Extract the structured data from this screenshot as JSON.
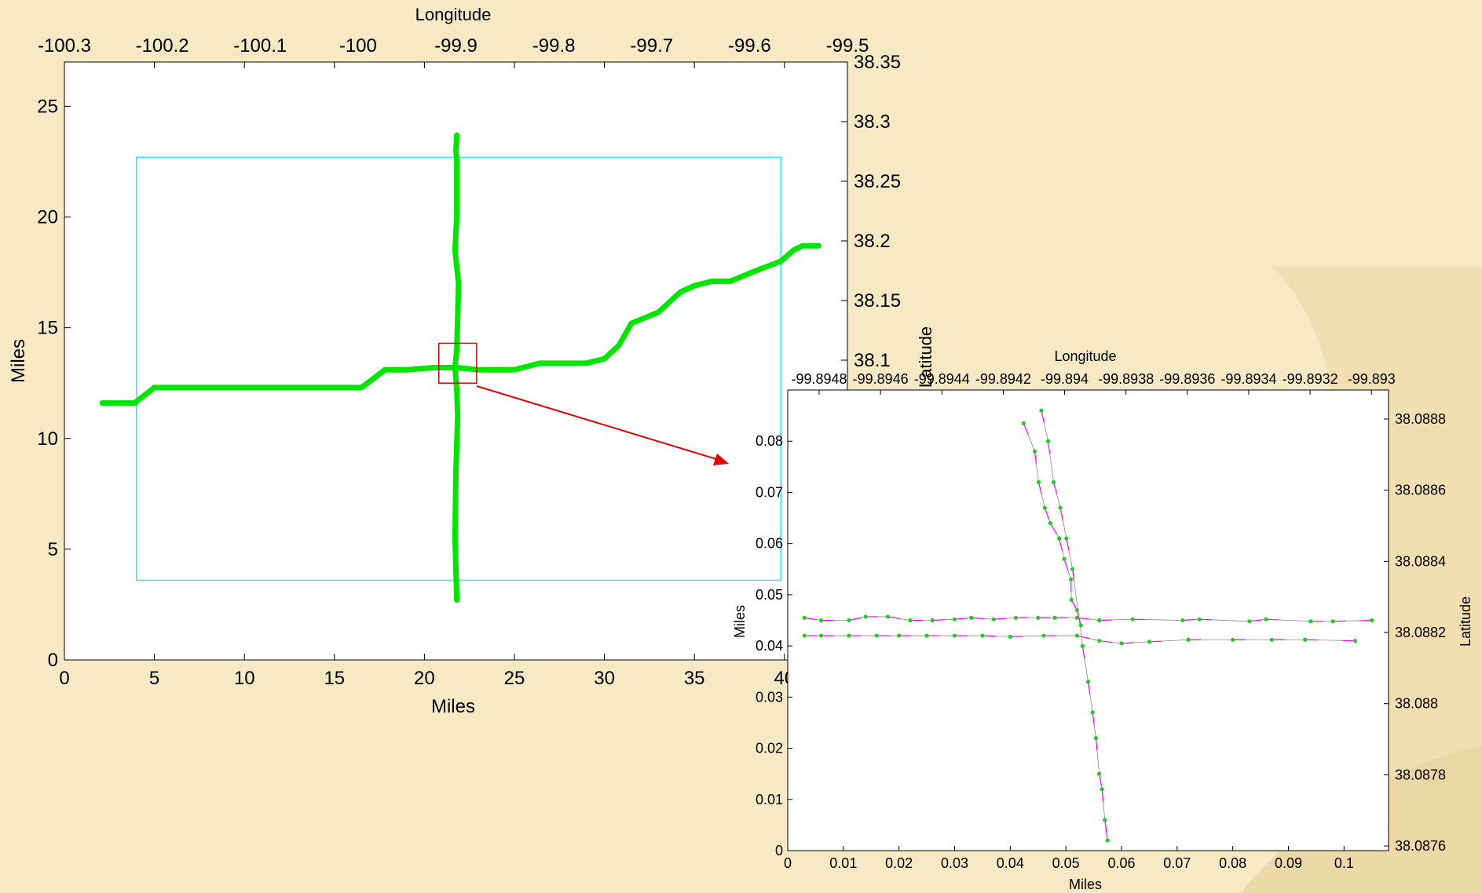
{
  "colors": {
    "background": "#f7e9c4",
    "plot_bg": "#ffffff",
    "road": "#00e600",
    "boundary": "#33e5e5",
    "zoom_box": "#e00000",
    "arrow": "#e00000",
    "vector": "#ff00ff",
    "point": "#22cc22"
  },
  "chart_data": [
    {
      "type": "line",
      "xlabel": "Miles",
      "ylabel": "Miles",
      "top_xlabel": "Longitude",
      "right_ylabel": "Latitude",
      "xlim": [
        0,
        43.5
      ],
      "ylim": [
        0,
        27
      ],
      "x_ticks": [
        "0",
        "5",
        "10",
        "15",
        "20",
        "25",
        "30",
        "35",
        "40"
      ],
      "y_ticks": [
        "0",
        "5",
        "10",
        "15",
        "20",
        "25"
      ],
      "top_ticks": [
        "-100.3",
        "-100.2",
        "-100.1",
        "-100",
        "-99.9",
        "-99.8",
        "-99.7",
        "-99.6",
        "-99.5"
      ],
      "right_ticks": [
        "38.35",
        "38.3",
        "38.25",
        "38.2",
        "38.15",
        "38.1"
      ],
      "grid": false,
      "series": [
        {
          "x": [
            2.1,
            3.9,
            5.0,
            7.0,
            10.0,
            14.0,
            16.5,
            17.0,
            17.8,
            19.0,
            20.5,
            21.8,
            23.0,
            25.0,
            26.4,
            27.0,
            29.0,
            30.0,
            30.8,
            31.5,
            32.4,
            33.0,
            34.2,
            35.0,
            36.0,
            36.5,
            37.0,
            38.5,
            39.8,
            40.5,
            41.0,
            41.9
          ],
          "y": [
            11.6,
            11.6,
            12.3,
            12.3,
            12.3,
            12.3,
            12.3,
            12.6,
            13.1,
            13.1,
            13.2,
            13.2,
            13.1,
            13.1,
            13.4,
            13.4,
            13.4,
            13.6,
            14.2,
            15.2,
            15.5,
            15.7,
            16.6,
            16.9,
            17.1,
            17.1,
            17.1,
            17.6,
            18.0,
            18.5,
            18.7,
            18.7
          ]
        },
        {
          "x": [
            21.8,
            21.7,
            21.75,
            21.85,
            21.8,
            21.7,
            21.8,
            21.9,
            21.7,
            21.8,
            21.8,
            21.75,
            21.8
          ],
          "y": [
            2.7,
            5.5,
            8.5,
            11.0,
            12.2,
            13.2,
            14.0,
            17.0,
            18.5,
            20.0,
            22.6,
            23.0,
            23.7
          ]
        }
      ],
      "boundary_box": {
        "x": [
          4.0,
          39.8
        ],
        "y": [
          3.6,
          22.7
        ]
      },
      "zoom_box": {
        "x": [
          20.8,
          22.9
        ],
        "y": [
          12.5,
          14.3
        ]
      }
    },
    {
      "type": "scatter",
      "xlabel": "Miles",
      "ylabel": "Miles",
      "top_xlabel": "Longitude",
      "right_ylabel": "Latitude",
      "xlim": [
        0,
        0.108
      ],
      "ylim": [
        0,
        0.09
      ],
      "x_ticks": [
        "0",
        "0.01",
        "0.02",
        "0.03",
        "0.04",
        "0.05",
        "0.06",
        "0.07",
        "0.08",
        "0.09",
        "0.1"
      ],
      "y_ticks": [
        "0",
        "0.01",
        "0.02",
        "0.03",
        "0.04",
        "0.05",
        "0.06",
        "0.07",
        "0.08"
      ],
      "top_ticks": [
        "-99.8948",
        "-99.8946",
        "-99.8944",
        "-99.8942",
        "-99.894",
        "-99.8938",
        "-99.8936",
        "-99.8934",
        "-99.8932",
        "-99.893"
      ],
      "right_ticks": [
        "38.0888",
        "38.0886",
        "38.0884",
        "38.0882",
        "38.088",
        "38.0878",
        "38.0876"
      ],
      "grid": false,
      "lane_points": [
        {
          "x": [
            0.003,
            0.006,
            0.011,
            0.014,
            0.018,
            0.022,
            0.026,
            0.03,
            0.033,
            0.037,
            0.041,
            0.045,
            0.048,
            0.052,
            0.056,
            0.062,
            0.071,
            0.074,
            0.083,
            0.086,
            0.094,
            0.098,
            0.105
          ],
          "y": [
            0.0455,
            0.045,
            0.045,
            0.0457,
            0.0457,
            0.045,
            0.045,
            0.0452,
            0.0455,
            0.0452,
            0.0455,
            0.0455,
            0.0455,
            0.0455,
            0.045,
            0.0452,
            0.045,
            0.0452,
            0.0448,
            0.0452,
            0.0448,
            0.0448,
            0.045
          ]
        },
        {
          "x": [
            0.003,
            0.006,
            0.011,
            0.016,
            0.02,
            0.025,
            0.03,
            0.035,
            0.04,
            0.046,
            0.052,
            0.056,
            0.06,
            0.065,
            0.072,
            0.08,
            0.087,
            0.093,
            0.102
          ],
          "y": [
            0.042,
            0.042,
            0.042,
            0.042,
            0.042,
            0.042,
            0.042,
            0.042,
            0.0418,
            0.042,
            0.042,
            0.041,
            0.0405,
            0.0408,
            0.0412,
            0.0412,
            0.0412,
            0.0412,
            0.041
          ]
        },
        {
          "x": [
            0.0424,
            0.0444,
            0.0451,
            0.0462,
            0.0472,
            0.0488,
            0.0497,
            0.0509,
            0.051,
            0.052,
            0.0527
          ],
          "y": [
            0.0835,
            0.078,
            0.072,
            0.067,
            0.064,
            0.061,
            0.057,
            0.053,
            0.049,
            0.047,
            0.044
          ]
        },
        {
          "x": [
            0.0456,
            0.0468,
            0.0478,
            0.049,
            0.0501,
            0.0512,
            0.053,
            0.054,
            0.0548,
            0.0554,
            0.056,
            0.0565,
            0.057,
            0.0575
          ],
          "y": [
            0.086,
            0.08,
            0.072,
            0.067,
            0.061,
            0.055,
            0.04,
            0.033,
            0.027,
            0.022,
            0.015,
            0.012,
            0.006,
            0.002
          ]
        }
      ]
    }
  ]
}
